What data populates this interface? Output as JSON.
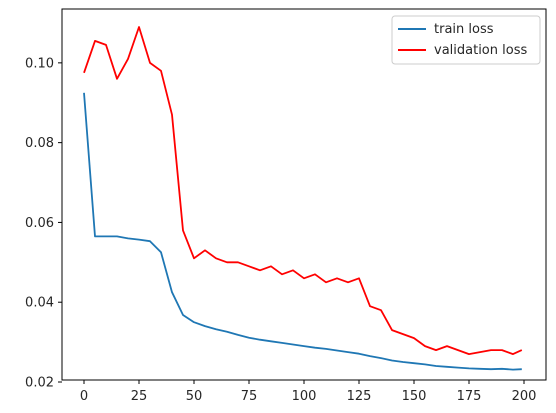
{
  "chart_data": {
    "type": "line",
    "title": "",
    "xlabel": "",
    "ylabel": "",
    "xlim": [
      -10,
      210
    ],
    "ylim": [
      0.0205,
      0.1135
    ],
    "x_ticks": [
      0,
      25,
      50,
      75,
      100,
      125,
      150,
      175,
      200
    ],
    "y_ticks": [
      0.02,
      0.04,
      0.06,
      0.08,
      0.1
    ],
    "y_tick_labels": [
      "0.02",
      "0.04",
      "0.06",
      "0.08",
      "0.10"
    ],
    "grid": false,
    "legend_position": "top-right",
    "x": [
      0,
      5,
      10,
      15,
      20,
      25,
      30,
      35,
      40,
      45,
      50,
      55,
      60,
      65,
      70,
      75,
      80,
      85,
      90,
      95,
      100,
      105,
      110,
      115,
      120,
      125,
      130,
      135,
      140,
      145,
      150,
      155,
      160,
      165,
      170,
      175,
      180,
      185,
      190,
      195,
      199
    ],
    "series": [
      {
        "name": "train loss",
        "color": "#1f77b4",
        "values": [
          0.0925,
          0.0565,
          0.0565,
          0.0565,
          0.056,
          0.0557,
          0.0553,
          0.0525,
          0.0425,
          0.0368,
          0.035,
          0.034,
          0.0332,
          0.0326,
          0.0318,
          0.0311,
          0.0306,
          0.0302,
          0.0298,
          0.0294,
          0.029,
          0.0286,
          0.0283,
          0.0279,
          0.0275,
          0.0271,
          0.0265,
          0.026,
          0.0254,
          0.025,
          0.0247,
          0.0244,
          0.024,
          0.0238,
          0.0236,
          0.0234,
          0.0233,
          0.0232,
          0.0233,
          0.0231,
          0.0232
        ]
      },
      {
        "name": "validation loss",
        "color": "#ff0000",
        "values": [
          0.0975,
          0.1055,
          0.1045,
          0.096,
          0.101,
          0.109,
          0.1,
          0.098,
          0.087,
          0.058,
          0.051,
          0.053,
          0.051,
          0.05,
          0.05,
          0.049,
          0.048,
          0.049,
          0.047,
          0.048,
          0.046,
          0.047,
          0.045,
          0.046,
          0.045,
          0.046,
          0.039,
          0.038,
          0.033,
          0.032,
          0.031,
          0.029,
          0.028,
          0.029,
          0.028,
          0.027,
          0.0275,
          0.028,
          0.028,
          0.027,
          0.028
        ]
      }
    ]
  }
}
